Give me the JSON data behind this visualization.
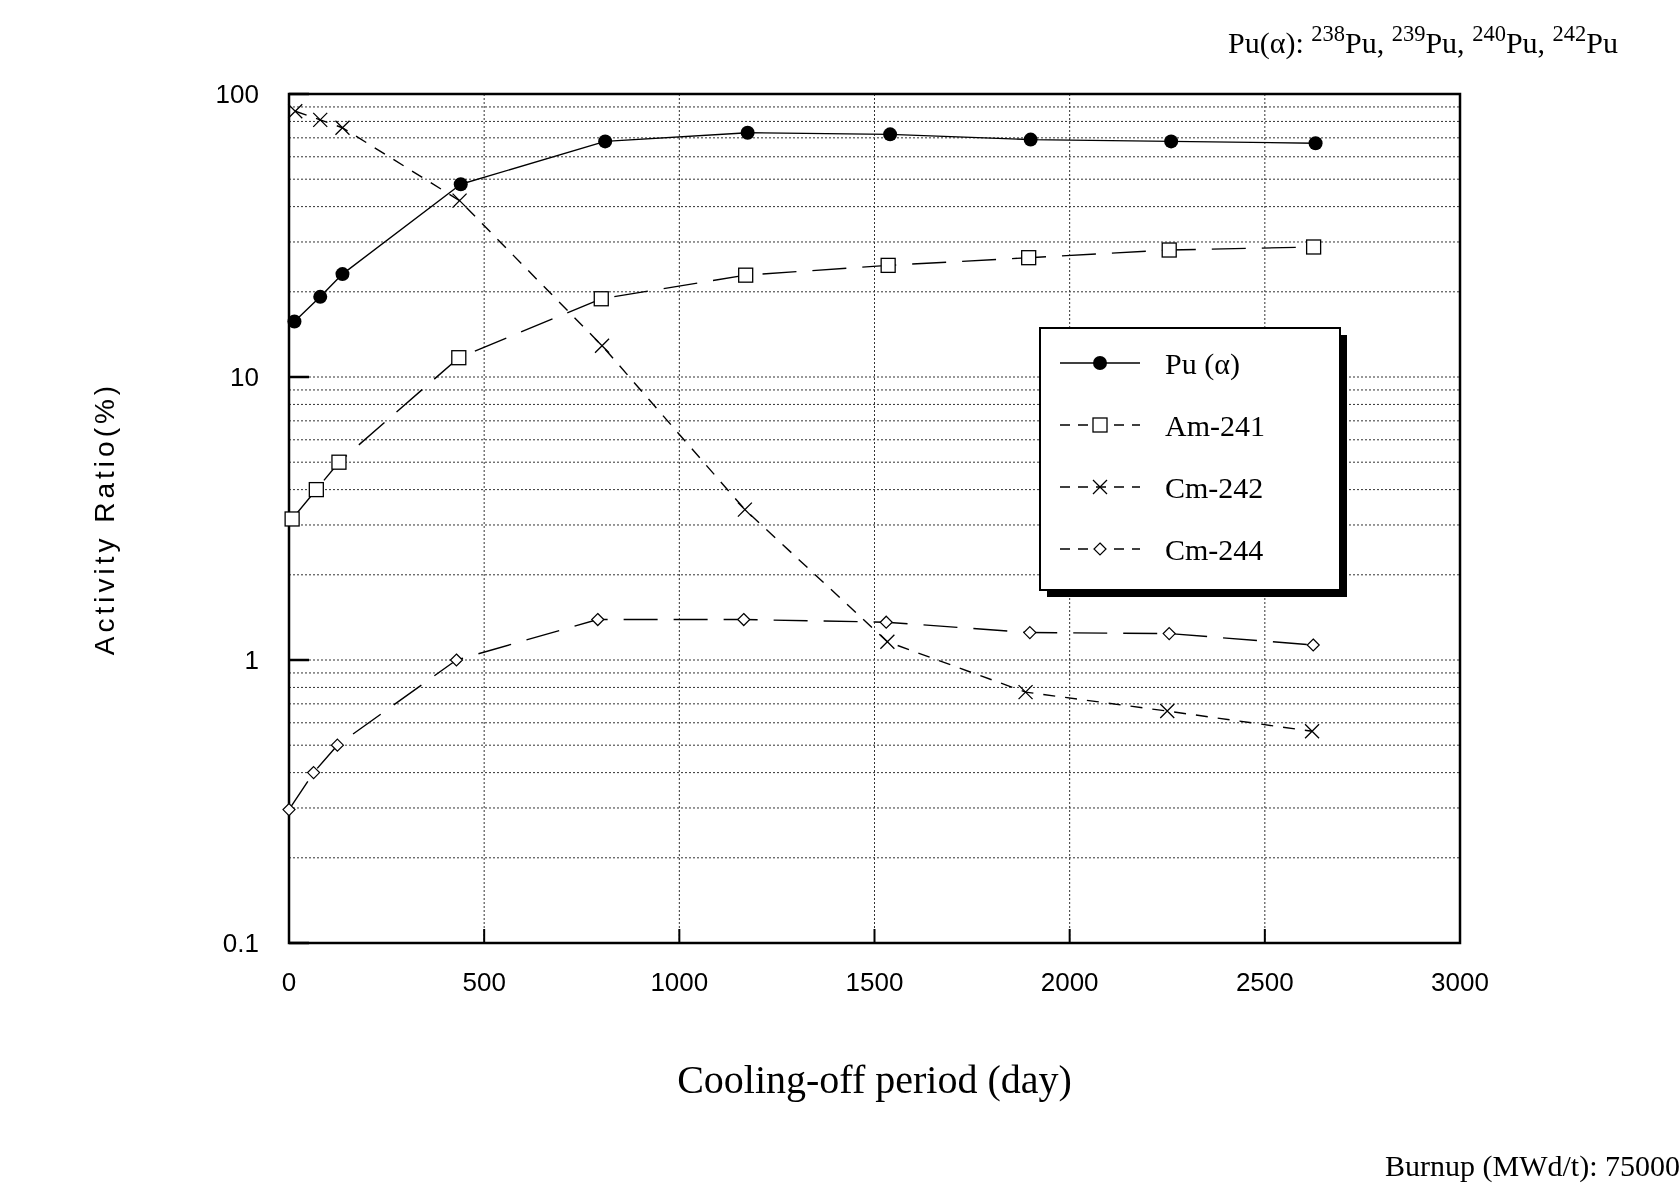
{
  "chart_data": {
    "type": "line",
    "xlabel": "Cooling-off period (day)",
    "ylabel": "Activity Ratio(%)",
    "log": "y",
    "grid": true,
    "legend": "right",
    "xlim": [
      0,
      3000
    ],
    "xticks": [
      0,
      500,
      1000,
      1500,
      2000,
      2500,
      3000
    ],
    "ylim": [
      0.1,
      100
    ],
    "yticks": [
      0.1,
      {
        "value": 0.2,
        "label": null
      },
      {
        "value": 0.3,
        "label": null
      },
      {
        "value": 0.4,
        "label": null
      },
      {
        "value": 0.5,
        "label": null
      },
      {
        "value": 0.6,
        "label": null
      },
      {
        "value": 0.7,
        "label": null
      },
      {
        "value": 0.8,
        "label": null
      },
      {
        "value": 0.9,
        "label": null
      },
      1,
      {
        "value": 2,
        "label": null
      },
      {
        "value": 3,
        "label": null
      },
      {
        "value": 4,
        "label": null
      },
      {
        "value": 5,
        "label": null
      },
      {
        "value": 6,
        "label": null
      },
      {
        "value": 7,
        "label": null
      },
      {
        "value": 8,
        "label": null
      },
      {
        "value": 9,
        "label": null
      },
      10,
      {
        "value": 20,
        "label": null
      },
      {
        "value": 30,
        "label": null
      },
      {
        "value": 40,
        "label": null
      },
      {
        "value": 50,
        "label": null
      },
      {
        "value": 60,
        "label": null
      },
      {
        "value": 70,
        "label": null
      },
      {
        "value": 80,
        "label": null
      },
      {
        "value": 90,
        "label": null
      },
      100
    ],
    "annotations": [
      "Pu(α): $^{238}$Pu, $^{239}$Pu, $^{240}$Pu, $^{242}$Pu",
      "Burnup (MWd/t): 75000"
    ],
    "series": [
      {
        "name": "Pu (α)",
        "color": "#000000",
        "marker": "circle",
        "line_style": "solid",
        "x": [
          14,
          80,
          137,
          440,
          810,
          1175,
          1540,
          1900,
          2260,
          2630
        ],
        "values": [
          15.7,
          19.2,
          23.1,
          48,
          68,
          73,
          72,
          69,
          68,
          67
        ]
      },
      {
        "name": "Am-241",
        "color": "#000000",
        "marker": "square",
        "line_style": "dashed",
        "x": [
          8,
          70,
          128,
          435,
          800,
          1170,
          1535,
          1895,
          2255,
          2625
        ],
        "values": [
          3.15,
          4.0,
          5.0,
          11.7,
          18.9,
          22.9,
          24.8,
          26.4,
          28.1,
          28.8
        ]
      },
      {
        "name": "Cm-242",
        "color": "#000000",
        "marker": "cross",
        "line_style": "dotted",
        "x": [
          16,
          80,
          137,
          437,
          802,
          1168,
          1533,
          1887,
          2250,
          2621
        ],
        "values": [
          86.9,
          81,
          76,
          42,
          12.9,
          3.4,
          1.16,
          0.77,
          0.66,
          0.56
        ]
      },
      {
        "name": "Cm-244",
        "color": "#000000",
        "marker": "diamond",
        "line_style": "dashed",
        "x": [
          0,
          63,
          124,
          429,
          791,
          1165,
          1530,
          1898,
          2255,
          2624
        ],
        "values": [
          0.296,
          0.4,
          0.5,
          1.0,
          1.39,
          1.39,
          1.36,
          1.25,
          1.24,
          1.13
        ]
      }
    ]
  }
}
